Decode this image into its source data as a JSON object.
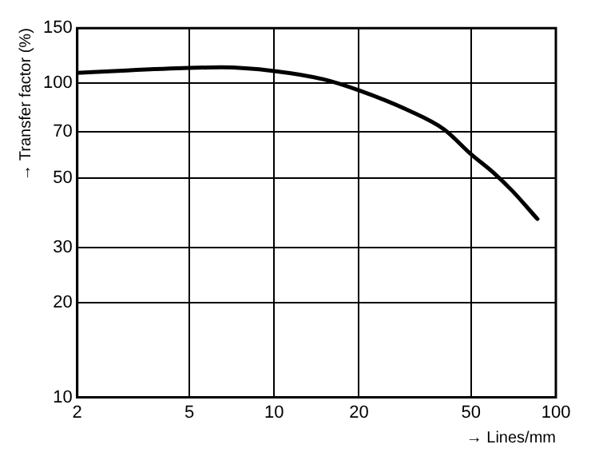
{
  "chart_data": {
    "type": "line",
    "xlabel": "→ Lines/mm",
    "ylabel": "→ Transfer factor (%)",
    "log": "xy",
    "grid": true,
    "marker": "none",
    "line_style": "solid",
    "legend": false,
    "x": [
      2,
      3,
      5,
      6.5,
      10,
      15,
      20,
      30,
      40,
      50,
      60,
      70,
      86
    ],
    "series": [
      {
        "color": "#000000",
        "values": [
          108,
          110,
          112,
          112.5,
          109.5,
          103,
          95,
          82,
          71.5,
          59.5,
          52,
          45.5,
          37
        ]
      }
    ],
    "xlim": [
      2,
      100
    ],
    "xticks": [
      2,
      5,
      10,
      20,
      50,
      100
    ],
    "ylim": [
      10,
      150
    ],
    "yticks": [
      10,
      20,
      30,
      50,
      70,
      100,
      150
    ]
  }
}
